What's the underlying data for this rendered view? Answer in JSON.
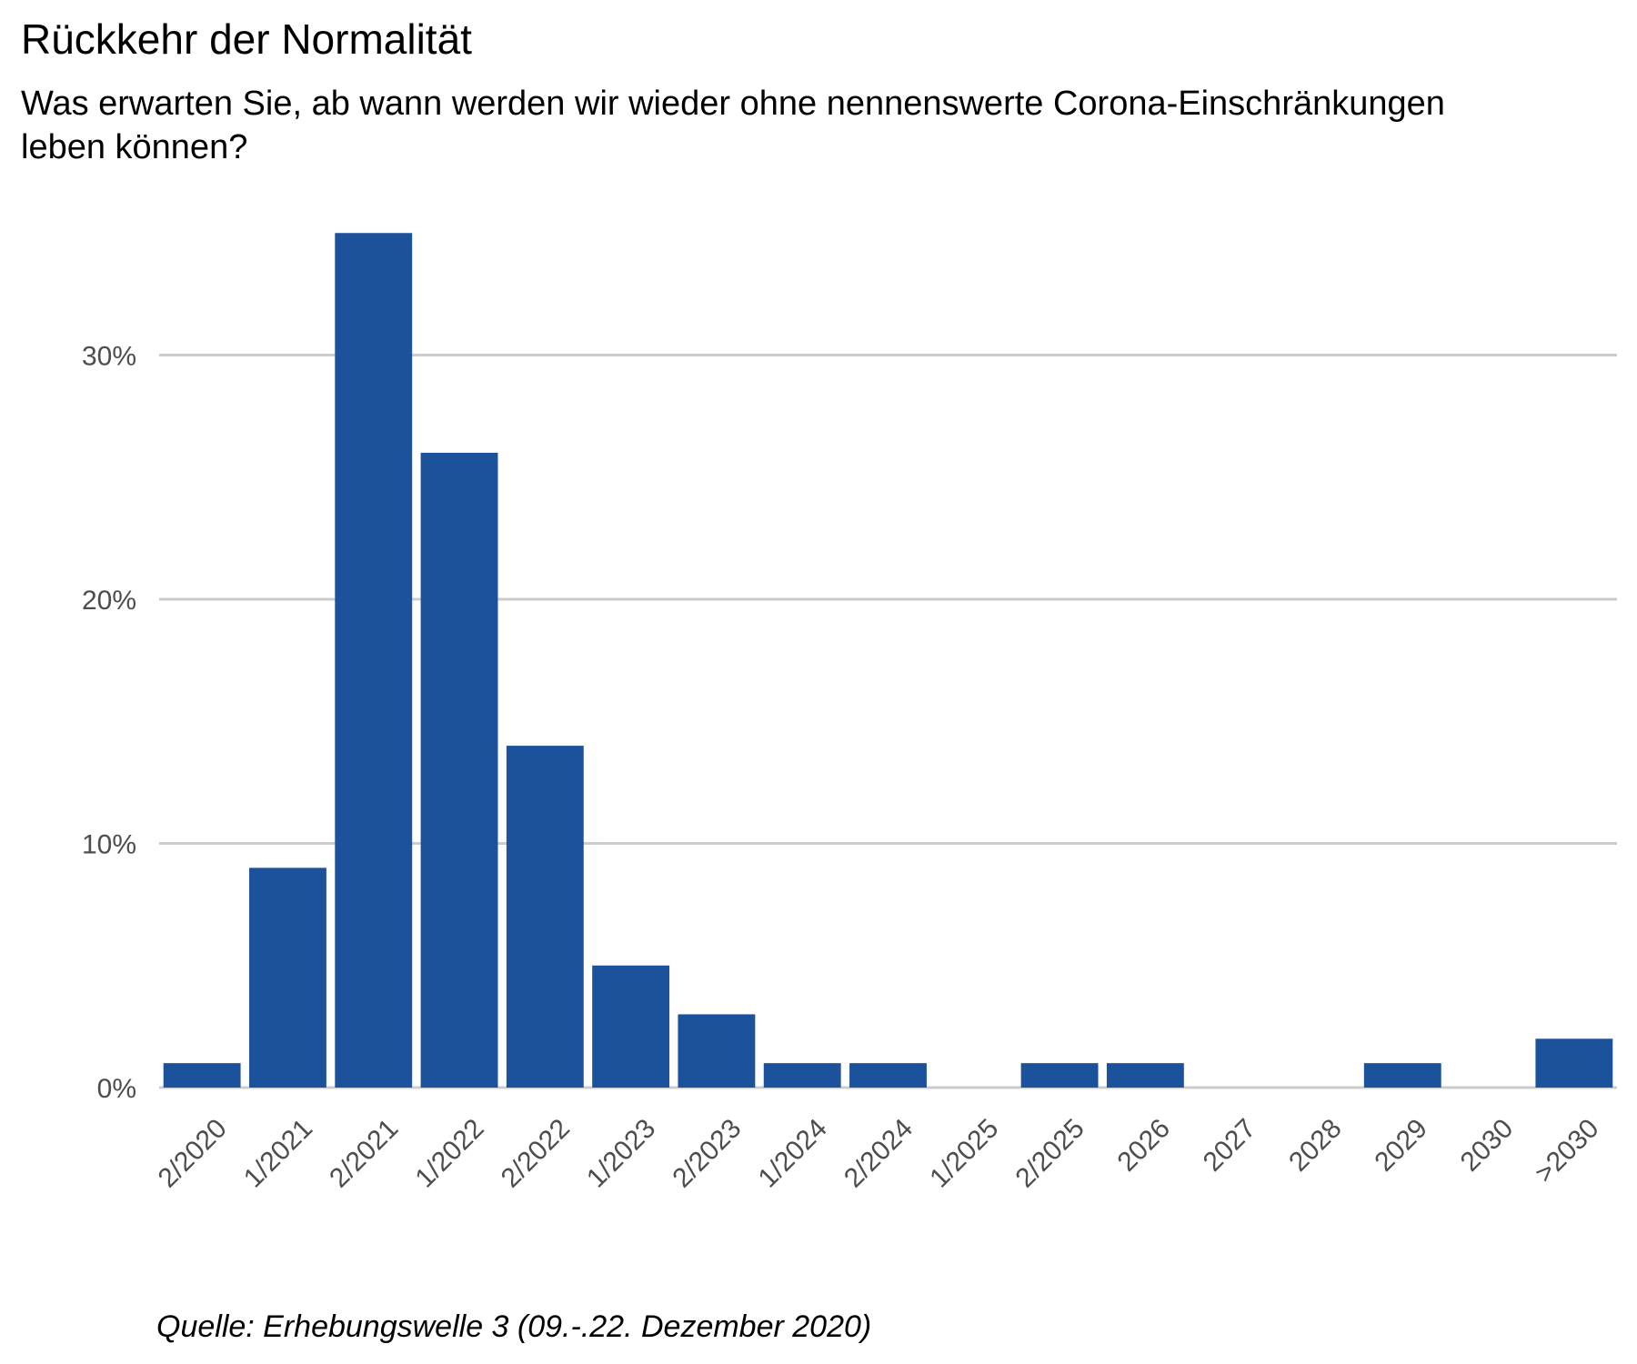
{
  "chart_data": {
    "type": "bar",
    "title": "Rückkehr der Normalität",
    "subtitle_lines": [
      "Was erwarten Sie, ab wann werden wir wieder ohne nennenswerte Corona-Einschränkungen",
      "leben können?"
    ],
    "caption": "Quelle: Erhebungswelle 3 (09.-.22. Dezember 2020)",
    "categories": [
      "2/2020",
      "1/2021",
      "2/2021",
      "1/2022",
      "2/2022",
      "1/2023",
      "2/2023",
      "1/2024",
      "2/2024",
      "1/2025",
      "2/2025",
      "2026",
      "2027",
      "2028",
      "2029",
      "2030",
      ">2030"
    ],
    "values": [
      1,
      9,
      35,
      26,
      14,
      5,
      3,
      1,
      1,
      0,
      1,
      1,
      0,
      0,
      1,
      0,
      2
    ],
    "ylim": [
      0,
      35
    ],
    "yticks": [
      0,
      10,
      20,
      30
    ],
    "ytick_labels": [
      "0%",
      "10%",
      "20%",
      "30%"
    ],
    "grid": true,
    "colors": {
      "bar": "#1c519c",
      "grid": "#cccccc",
      "tick_text": "#4d4d4d"
    }
  }
}
